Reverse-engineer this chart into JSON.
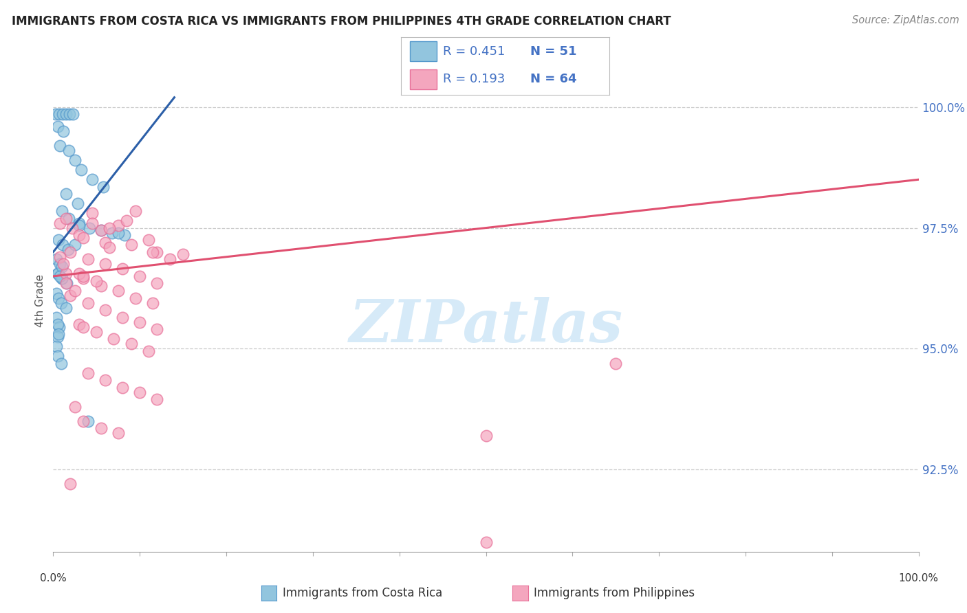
{
  "title": "IMMIGRANTS FROM COSTA RICA VS IMMIGRANTS FROM PHILIPPINES 4TH GRADE CORRELATION CHART",
  "source": "Source: ZipAtlas.com",
  "ylabel": "4th Grade",
  "legend_blue_r": "R = 0.451",
  "legend_blue_n": "N = 51",
  "legend_pink_r": "R = 0.193",
  "legend_pink_n": "N = 64",
  "legend_blue_label": "Immigrants from Costa Rica",
  "legend_pink_label": "Immigrants from Philippines",
  "ytick_vals": [
    92.5,
    95.0,
    97.5,
    100.0
  ],
  "ytick_labels": [
    "92.5%",
    "95.0%",
    "97.5%",
    "100.0%"
  ],
  "xlim": [
    0.0,
    100.0
  ],
  "ylim": [
    90.8,
    101.2
  ],
  "blue_fill": "#92c5de",
  "blue_edge": "#5599cc",
  "pink_fill": "#f4a6be",
  "pink_edge": "#e87099",
  "blue_line": "#2c5fa8",
  "pink_line": "#e05070",
  "grid_color": "#cccccc",
  "tick_color": "#4472c4",
  "watermark_color": "#d6eaf8",
  "blue_dots": [
    [
      0.3,
      99.85
    ],
    [
      0.7,
      99.85
    ],
    [
      1.1,
      99.85
    ],
    [
      1.5,
      99.85
    ],
    [
      1.9,
      99.85
    ],
    [
      2.3,
      99.85
    ],
    [
      0.5,
      99.6
    ],
    [
      1.2,
      99.5
    ],
    [
      0.8,
      99.2
    ],
    [
      1.8,
      99.1
    ],
    [
      2.5,
      98.9
    ],
    [
      3.2,
      98.7
    ],
    [
      4.5,
      98.5
    ],
    [
      5.8,
      98.35
    ],
    [
      1.5,
      98.2
    ],
    [
      2.8,
      98.0
    ],
    [
      1.0,
      97.85
    ],
    [
      1.8,
      97.7
    ],
    [
      3.0,
      97.6
    ],
    [
      4.2,
      97.5
    ],
    [
      5.5,
      97.45
    ],
    [
      6.8,
      97.4
    ],
    [
      8.2,
      97.35
    ],
    [
      0.6,
      97.25
    ],
    [
      1.1,
      97.15
    ],
    [
      1.7,
      97.05
    ],
    [
      0.4,
      96.85
    ],
    [
      0.8,
      96.75
    ],
    [
      0.5,
      96.55
    ],
    [
      1.0,
      96.45
    ],
    [
      1.6,
      96.35
    ],
    [
      0.4,
      96.15
    ],
    [
      0.6,
      96.05
    ],
    [
      0.9,
      95.95
    ],
    [
      1.5,
      95.85
    ],
    [
      0.4,
      95.65
    ],
    [
      0.7,
      95.45
    ],
    [
      0.5,
      95.25
    ],
    [
      0.4,
      95.05
    ],
    [
      0.5,
      94.85
    ],
    [
      0.9,
      94.7
    ],
    [
      0.5,
      96.55
    ],
    [
      1.0,
      96.45
    ],
    [
      4.0,
      93.5
    ],
    [
      7.5,
      97.4
    ],
    [
      0.5,
      95.5
    ],
    [
      0.6,
      95.3
    ],
    [
      1.0,
      96.7
    ],
    [
      0.8,
      96.5
    ],
    [
      2.5,
      97.15
    ],
    [
      3.0,
      97.55
    ]
  ],
  "pink_dots": [
    [
      0.8,
      97.6
    ],
    [
      1.5,
      97.7
    ],
    [
      2.2,
      97.5
    ],
    [
      3.0,
      97.35
    ],
    [
      4.5,
      97.8
    ],
    [
      6.0,
      97.2
    ],
    [
      7.5,
      97.55
    ],
    [
      9.0,
      97.15
    ],
    [
      5.5,
      97.45
    ],
    [
      8.5,
      97.65
    ],
    [
      11.0,
      97.25
    ],
    [
      12.0,
      97.0
    ],
    [
      13.5,
      96.85
    ],
    [
      15.0,
      96.95
    ],
    [
      3.5,
      97.3
    ],
    [
      6.5,
      97.1
    ],
    [
      2.0,
      97.0
    ],
    [
      4.0,
      96.85
    ],
    [
      6.0,
      96.75
    ],
    [
      8.0,
      96.65
    ],
    [
      10.0,
      96.5
    ],
    [
      12.0,
      96.35
    ],
    [
      1.5,
      96.55
    ],
    [
      3.5,
      96.45
    ],
    [
      5.5,
      96.3
    ],
    [
      7.5,
      96.2
    ],
    [
      9.5,
      96.05
    ],
    [
      11.5,
      95.95
    ],
    [
      2.0,
      96.1
    ],
    [
      4.0,
      95.95
    ],
    [
      6.0,
      95.8
    ],
    [
      8.0,
      95.65
    ],
    [
      10.0,
      95.55
    ],
    [
      12.0,
      95.4
    ],
    [
      3.0,
      95.5
    ],
    [
      5.0,
      95.35
    ],
    [
      7.0,
      95.2
    ],
    [
      9.0,
      95.1
    ],
    [
      11.0,
      94.95
    ],
    [
      4.0,
      94.5
    ],
    [
      6.0,
      94.35
    ],
    [
      8.0,
      94.2
    ],
    [
      10.0,
      94.1
    ],
    [
      12.0,
      93.95
    ],
    [
      3.5,
      93.5
    ],
    [
      5.5,
      93.35
    ],
    [
      7.5,
      93.25
    ],
    [
      2.0,
      92.2
    ],
    [
      3.5,
      95.45
    ],
    [
      50.0,
      91.0
    ],
    [
      1.5,
      96.35
    ],
    [
      2.5,
      96.2
    ],
    [
      4.5,
      97.6
    ],
    [
      6.5,
      97.5
    ],
    [
      0.8,
      96.9
    ],
    [
      1.2,
      96.75
    ],
    [
      9.5,
      97.85
    ],
    [
      11.5,
      97.0
    ],
    [
      3.0,
      96.55
    ],
    [
      5.0,
      96.4
    ],
    [
      65.0,
      94.7
    ],
    [
      50.0,
      93.2
    ],
    [
      2.5,
      93.8
    ],
    [
      3.5,
      96.5
    ]
  ],
  "blue_line_x0": 0,
  "blue_line_y0": 97.0,
  "blue_line_x1": 14,
  "blue_line_y1": 100.2,
  "pink_line_x0": 0,
  "pink_line_y0": 96.5,
  "pink_line_x1": 100,
  "pink_line_y1": 98.5
}
